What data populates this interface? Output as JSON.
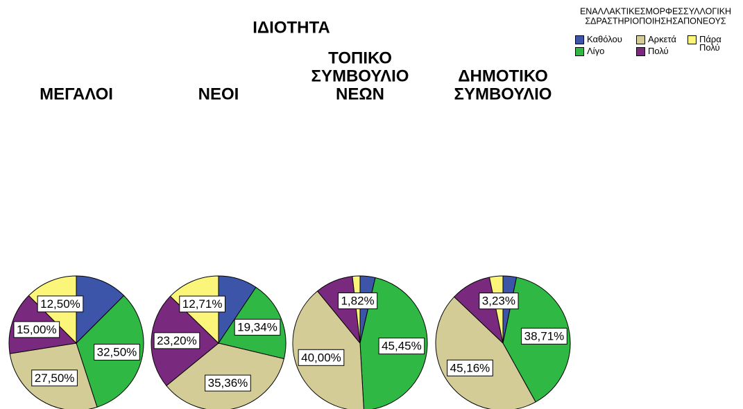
{
  "title": "ΙΔΙΟΤΗΤΑ",
  "legend_title": [
    "ΕΝΑΛΛΑΚΤΙΚΕΣΜΟΡΦΕΣΣΥΛΛΟΓΙΚΗ",
    "ΣΔΡΑΣΤΗΡΙΟΠΟΙΗΣΗΣΑΠΟΝΕΟΥΣ"
  ],
  "chart_data": [
    {
      "type": "pie",
      "title": [
        "ΜΕΓΑΛΟΙ"
      ],
      "categories": [
        "Καθόλου",
        "Λίγο",
        "Αρκετά",
        "Πολύ",
        "Πάρα Πολύ"
      ],
      "colors": [
        "#3d55a8",
        "#2fb844",
        "#d4cc96",
        "#7a2a7e",
        "#fbf57a"
      ],
      "values": [
        12.5,
        32.5,
        27.5,
        15.0,
        12.5
      ],
      "value_labels": [
        null,
        "32,50%",
        "27,50%",
        "15,00%",
        "12,50%"
      ]
    },
    {
      "type": "pie",
      "title": [
        "ΝΕΟΙ"
      ],
      "categories": [
        "Καθόλου",
        "Λίγο",
        "Αρκετά",
        "Πολύ",
        "Πάρα Πολύ"
      ],
      "colors": [
        "#3d55a8",
        "#2fb844",
        "#d4cc96",
        "#7a2a7e",
        "#fbf57a"
      ],
      "values": [
        9.39,
        19.34,
        35.36,
        23.2,
        12.71
      ],
      "value_labels": [
        null,
        "19,34%",
        "35,36%",
        "23,20%",
        "12,71%"
      ]
    },
    {
      "type": "pie",
      "title": [
        "ΤΟΠΙΚΟ",
        "ΣΥΜΒΟΥΛΙΟ",
        "ΝΕΩΝ"
      ],
      "categories": [
        "Καθόλου",
        "Λίγο",
        "Αρκετά",
        "Πολύ",
        "Πάρα Πολύ"
      ],
      "colors": [
        "#3d55a8",
        "#2fb844",
        "#d4cc96",
        "#7a2a7e",
        "#fbf57a"
      ],
      "values": [
        3.64,
        45.45,
        40.0,
        9.09,
        1.82
      ],
      "value_labels": [
        null,
        "45,45%",
        "40,00%",
        null,
        "1,82%"
      ]
    },
    {
      "type": "pie",
      "title": [
        "ΔΗΜΟΤΙΚΟ",
        "ΣΥΜΒΟΥΛΙΟ"
      ],
      "categories": [
        "Καθόλου",
        "Λίγο",
        "Αρκετά",
        "Πολύ",
        "Πάρα Πολύ"
      ],
      "colors": [
        "#3d55a8",
        "#2fb844",
        "#d4cc96",
        "#7a2a7e",
        "#fbf57a"
      ],
      "values": [
        3.23,
        38.71,
        45.16,
        9.68,
        3.23
      ],
      "value_labels": [
        null,
        "38,71%",
        "45,16%",
        null,
        "3,23%"
      ]
    }
  ]
}
